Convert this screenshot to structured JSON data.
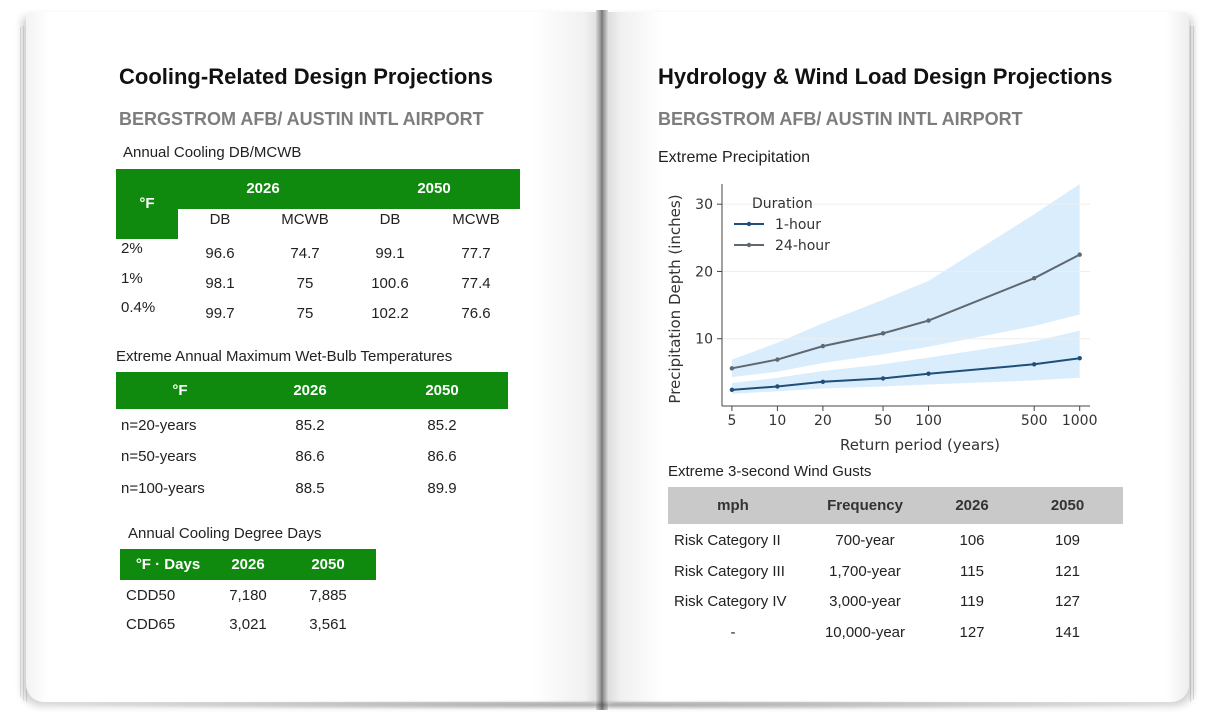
{
  "left_page": {
    "title": "Cooling-Related Design Projections",
    "location": "BERGSTROM AFB/ AUSTIN INTL AIRPORT",
    "db_table": {
      "caption": "Annual Cooling DB/MCWB",
      "unit": "°F",
      "years": [
        "2026",
        "2050"
      ],
      "subcols": [
        "DB",
        "MCWB",
        "DB",
        "MCWB"
      ],
      "rows": [
        {
          "label": "2%",
          "values": [
            "96.6",
            "74.7",
            "99.1",
            "77.7"
          ]
        },
        {
          "label": "1%",
          "values": [
            "98.1",
            "75",
            "100.6",
            "77.4"
          ]
        },
        {
          "label": "0.4%",
          "values": [
            "99.7",
            "75",
            "102.2",
            "76.6"
          ]
        }
      ]
    },
    "wb_table": {
      "caption": "Extreme Annual Maximum Wet-Bulb Temperatures",
      "headers": [
        "°F",
        "2026",
        "2050"
      ],
      "rows": [
        {
          "label": "n=20-years",
          "values": [
            "85.2",
            "85.2"
          ]
        },
        {
          "label": "n=50-years",
          "values": [
            "86.6",
            "86.6"
          ]
        },
        {
          "label": "n=100-years",
          "values": [
            "88.5",
            "89.9"
          ]
        }
      ]
    },
    "cdd_table": {
      "caption": "Annual Cooling Degree Days",
      "headers": [
        "°F · Days",
        "2026",
        "2050"
      ],
      "rows": [
        {
          "label": "CDD50",
          "values": [
            "7,180",
            "7,885"
          ]
        },
        {
          "label": "CDD65",
          "values": [
            "3,021",
            "3,561"
          ]
        }
      ]
    }
  },
  "right_page": {
    "title": "Hydrology &  Wind Load  Design Projections",
    "location": "BERGSTROM AFB/ AUSTIN INTL AIRPORT",
    "precip_caption": "Extreme Precipitation",
    "wind_table": {
      "caption": "Extreme 3-second Wind Gusts",
      "headers": [
        "mph",
        "Frequency",
        "2026",
        "2050"
      ],
      "rows": [
        {
          "label": "Risk Category II",
          "values": [
            "700-year",
            "106",
            "109"
          ]
        },
        {
          "label": "Risk Category III",
          "values": [
            "1,700-year",
            "115",
            "121"
          ]
        },
        {
          "label": "Risk Category IV",
          "values": [
            "3,000-year",
            "119",
            "127"
          ]
        },
        {
          "label": "-",
          "values": [
            "10,000-year",
            "127",
            "141"
          ]
        }
      ]
    }
  },
  "chart_data": {
    "type": "line",
    "title": "",
    "xlabel": "Return period (years)",
    "ylabel": "Precipitation Depth (inches)",
    "x_scale": "log",
    "x": [
      5,
      10,
      20,
      50,
      100,
      500,
      1000
    ],
    "x_tick_labels": [
      "5",
      "10",
      "20",
      "50",
      "100",
      "500",
      "1000"
    ],
    "y_ticks": [
      10,
      20,
      30
    ],
    "ylim": [
      0,
      33
    ],
    "legend_title": "Duration",
    "legend_position": "top-left",
    "grid": true,
    "series": [
      {
        "name": "1-hour",
        "color": "#1f4e79",
        "values": [
          2.4,
          2.9,
          3.6,
          4.1,
          4.8,
          6.2,
          7.1
        ],
        "lower": [
          1.8,
          2.2,
          2.6,
          2.9,
          3.2,
          3.8,
          4.2
        ],
        "upper": [
          3.4,
          4.2,
          5.2,
          6.2,
          7.2,
          9.6,
          11.2
        ]
      },
      {
        "name": "24-hour",
        "color": "#5f6770",
        "values": [
          5.6,
          6.9,
          8.9,
          10.8,
          12.7,
          19.0,
          22.5
        ],
        "lower": [
          4.3,
          5.1,
          6.4,
          7.7,
          8.8,
          11.9,
          13.6
        ],
        "upper": [
          6.9,
          9.4,
          12.3,
          15.8,
          18.6,
          28.5,
          33.0
        ]
      }
    ],
    "band_color": "#d4eafc"
  }
}
